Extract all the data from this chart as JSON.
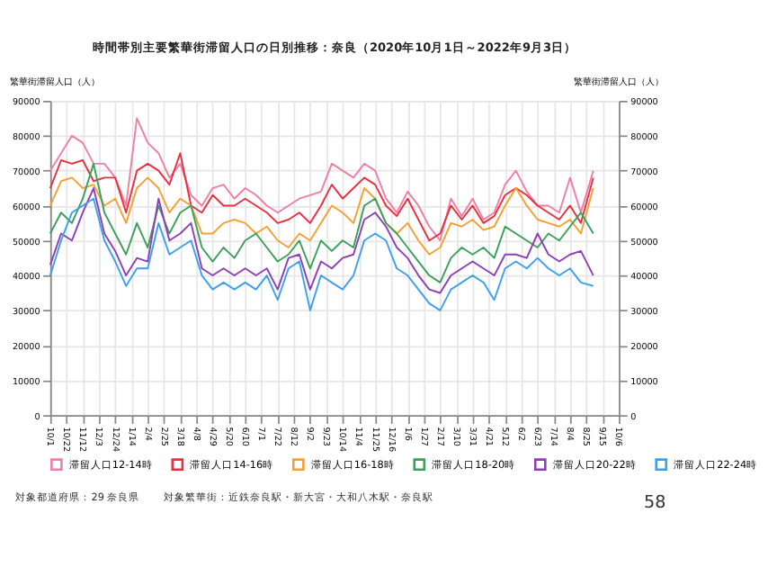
{
  "chart_data": {
    "type": "line",
    "title": "時間帯別主要繁華街滞留人口の日別推移：奈良（2020年10月1日～2022年9月3日）",
    "ylabel": "繁華街滞留人口（人）",
    "y2label": "繁華街滞留人口（人）",
    "x": [
      "2020-10-01",
      "2020-10-15",
      "2020-10-29",
      "2020-11-12",
      "2020-11-26",
      "2020-12-10",
      "2020-12-24",
      "2021-01-07",
      "2021-01-21",
      "2021-02-04",
      "2021-02-18",
      "2021-03-04",
      "2021-03-18",
      "2021-04-01",
      "2021-04-15",
      "2021-04-29",
      "2021-05-13",
      "2021-05-27",
      "2021-06-10",
      "2021-06-24",
      "2021-07-08",
      "2021-07-22",
      "2021-08-05",
      "2021-08-19",
      "2021-09-02",
      "2021-09-16",
      "2021-09-30",
      "2021-10-14",
      "2021-10-28",
      "2021-11-11",
      "2021-11-25",
      "2021-12-09",
      "2021-12-23",
      "2022-01-06",
      "2022-01-20",
      "2022-02-03",
      "2022-02-17",
      "2022-03-03",
      "2022-03-17",
      "2022-03-31",
      "2022-04-14",
      "2022-04-28",
      "2022-05-12",
      "2022-05-26",
      "2022-06-09",
      "2022-06-23",
      "2022-07-07",
      "2022-07-21",
      "2022-08-04",
      "2022-08-18",
      "2022-09-03"
    ],
    "series": [
      {
        "name": "滞留人口12-14時",
        "color": "#f07fa5",
        "values": [
          70000,
          75000,
          80000,
          78000,
          72000,
          72000,
          68000,
          60000,
          85000,
          78000,
          75000,
          68000,
          72000,
          63000,
          60000,
          65000,
          66000,
          62000,
          65000,
          63000,
          60000,
          58000,
          60000,
          62000,
          63000,
          64000,
          72000,
          70000,
          68000,
          72000,
          70000,
          62000,
          58000,
          64000,
          60000,
          54000,
          50000,
          62000,
          57000,
          62000,
          56000,
          58000,
          66000,
          70000,
          64000,
          60000,
          60000,
          58000,
          68000,
          58000,
          70000
        ]
      },
      {
        "name": "滞留人口14-16時",
        "color": "#e8303f",
        "values": [
          65000,
          73000,
          72000,
          73000,
          67000,
          68000,
          68000,
          58000,
          70000,
          72000,
          70000,
          66000,
          75000,
          60000,
          58000,
          63000,
          60000,
          60000,
          62000,
          60000,
          58000,
          55000,
          56000,
          58000,
          55000,
          60000,
          66000,
          62000,
          65000,
          68000,
          66000,
          60000,
          57000,
          62000,
          56000,
          50000,
          52000,
          60000,
          56000,
          60000,
          55000,
          57000,
          63000,
          65000,
          63000,
          60000,
          58000,
          56000,
          60000,
          55000,
          68000
        ]
      },
      {
        "name": "滞留人口16-18時",
        "color": "#f5a031",
        "values": [
          60000,
          67000,
          68000,
          65000,
          66000,
          60000,
          62000,
          55000,
          65000,
          68000,
          65000,
          58000,
          62000,
          60000,
          52000,
          52000,
          55000,
          56000,
          55000,
          52000,
          54000,
          50000,
          48000,
          52000,
          50000,
          55000,
          60000,
          58000,
          55000,
          65000,
          62000,
          55000,
          52000,
          55000,
          50000,
          46000,
          48000,
          55000,
          54000,
          56000,
          53000,
          54000,
          60000,
          65000,
          60000,
          56000,
          55000,
          54000,
          56000,
          52000,
          65000
        ]
      },
      {
        "name": "滞留人口18-20時",
        "color": "#3aa05a",
        "values": [
          52000,
          58000,
          55000,
          62000,
          72000,
          58000,
          52000,
          46000,
          55000,
          48000,
          60000,
          52000,
          58000,
          60000,
          48000,
          44000,
          48000,
          45000,
          50000,
          52000,
          48000,
          44000,
          46000,
          50000,
          42000,
          50000,
          47000,
          50000,
          48000,
          60000,
          62000,
          55000,
          52000,
          48000,
          44000,
          40000,
          38000,
          45000,
          48000,
          46000,
          48000,
          45000,
          54000,
          52000,
          50000,
          48000,
          52000,
          50000,
          54000,
          58000,
          52000
        ]
      },
      {
        "name": "滞留人口20-22時",
        "color": "#8e3fb8",
        "values": [
          43000,
          52000,
          50000,
          58000,
          65000,
          52000,
          47000,
          40000,
          45000,
          44000,
          62000,
          50000,
          52000,
          55000,
          42000,
          40000,
          42000,
          40000,
          42000,
          40000,
          42000,
          36000,
          45000,
          46000,
          36000,
          44000,
          42000,
          45000,
          46000,
          56000,
          58000,
          54000,
          48000,
          45000,
          40000,
          36000,
          35000,
          40000,
          42000,
          44000,
          42000,
          40000,
          46000,
          46000,
          45000,
          52000,
          46000,
          44000,
          46000,
          47000,
          40000
        ]
      },
      {
        "name": "滞留人口22-24時",
        "color": "#3ca0ee",
        "values": [
          40000,
          50000,
          58000,
          60000,
          62000,
          50000,
          44000,
          37000,
          42000,
          42000,
          55000,
          46000,
          48000,
          50000,
          40000,
          36000,
          38000,
          36000,
          38000,
          36000,
          40000,
          33000,
          42000,
          44000,
          30000,
          40000,
          38000,
          36000,
          40000,
          50000,
          52000,
          50000,
          42000,
          40000,
          36000,
          32000,
          30000,
          36000,
          38000,
          40000,
          38000,
          33000,
          42000,
          44000,
          42000,
          45000,
          42000,
          40000,
          42000,
          38000,
          37000
        ]
      }
    ],
    "xlim": [
      "2020-10-01",
      "2022-10-06"
    ],
    "xticks": [
      {
        "value": "2020-10-01",
        "label": "10/1"
      },
      {
        "value": "2020-10-22",
        "label": "10/22"
      },
      {
        "value": "2020-11-12",
        "label": "11/12"
      },
      {
        "value": "2020-12-03",
        "label": "12/3"
      },
      {
        "value": "2020-12-24",
        "label": "12/24"
      },
      {
        "value": "2021-01-14",
        "label": "1/14"
      },
      {
        "value": "2021-02-04",
        "label": "2/4"
      },
      {
        "value": "2021-02-25",
        "label": "2/25"
      },
      {
        "value": "2021-03-18",
        "label": "3/18"
      },
      {
        "value": "2021-04-08",
        "label": "4/8"
      },
      {
        "value": "2021-04-29",
        "label": "4/29"
      },
      {
        "value": "2021-05-20",
        "label": "5/20"
      },
      {
        "value": "2021-06-10",
        "label": "6/10"
      },
      {
        "value": "2021-07-01",
        "label": "7/1"
      },
      {
        "value": "2021-07-22",
        "label": "7/22"
      },
      {
        "value": "2021-08-12",
        "label": "8/12"
      },
      {
        "value": "2021-09-02",
        "label": "9/2"
      },
      {
        "value": "2021-09-23",
        "label": "9/23"
      },
      {
        "value": "2021-10-14",
        "label": "10/14"
      },
      {
        "value": "2021-11-04",
        "label": "11/4"
      },
      {
        "value": "2021-11-25",
        "label": "11/25"
      },
      {
        "value": "2021-12-16",
        "label": "12/16"
      },
      {
        "value": "2022-01-06",
        "label": "1/6"
      },
      {
        "value": "2022-01-27",
        "label": "1/27"
      },
      {
        "value": "2022-02-17",
        "label": "2/17"
      },
      {
        "value": "2022-03-10",
        "label": "3/10"
      },
      {
        "value": "2022-03-31",
        "label": "3/31"
      },
      {
        "value": "2022-04-21",
        "label": "4/21"
      },
      {
        "value": "2022-05-12",
        "label": "5/12"
      },
      {
        "value": "2022-06-02",
        "label": "6/2"
      },
      {
        "value": "2022-06-23",
        "label": "6/23"
      },
      {
        "value": "2022-07-14",
        "label": "7/14"
      },
      {
        "value": "2022-08-04",
        "label": "8/4"
      },
      {
        "value": "2022-08-25",
        "label": "8/25"
      },
      {
        "value": "2022-09-15",
        "label": "9/15"
      },
      {
        "value": "2022-10-06",
        "label": "10/6"
      }
    ],
    "ylim": [
      0,
      90000
    ],
    "yticks": [
      0,
      10000,
      20000,
      30000,
      40000,
      50000,
      60000,
      70000,
      80000,
      90000
    ],
    "y2lim": [
      0,
      90000
    ],
    "y2ticks": [
      0,
      10000,
      20000,
      30000,
      40000,
      50000,
      60000,
      70000,
      80000,
      90000
    ],
    "grid": true,
    "legend": "bottom",
    "marker": "none",
    "line_style": "solid",
    "annotations": [
      "対象都道府県：29 奈良県",
      "対象繁華街：近鉄奈良駅・新大宮・大和八木駅・奈良駅",
      "58"
    ]
  }
}
